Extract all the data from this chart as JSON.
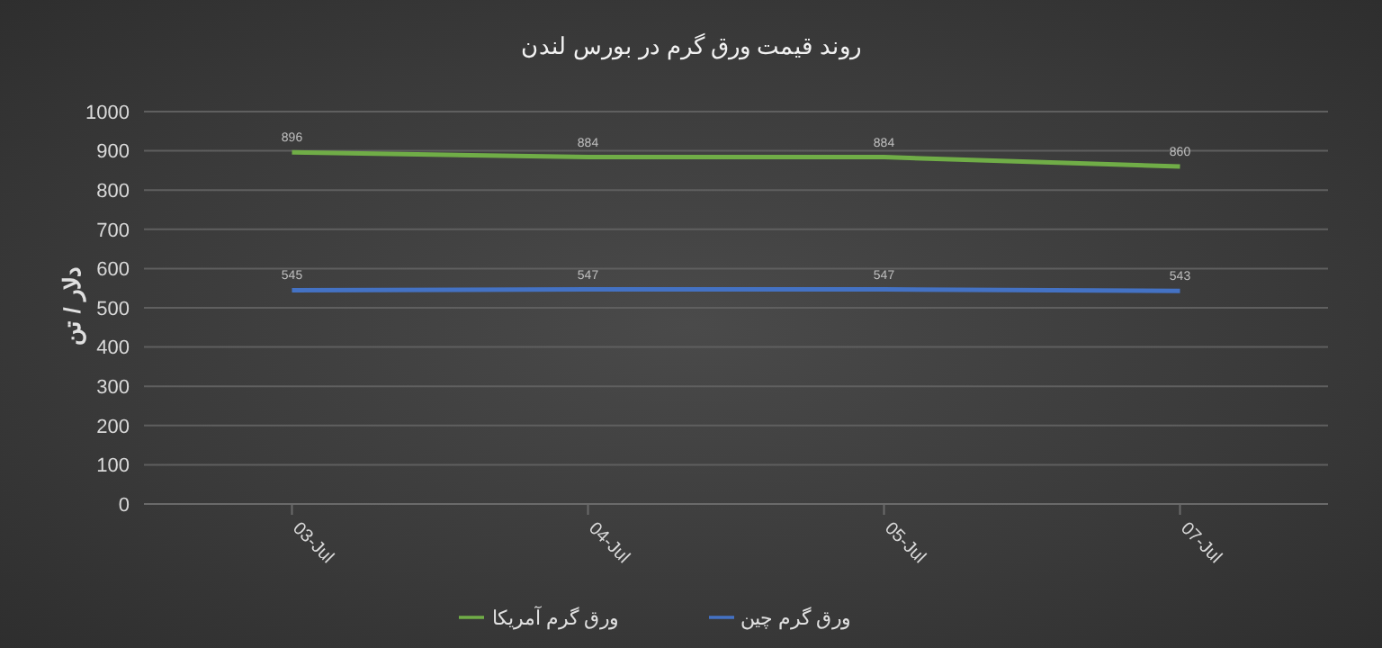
{
  "chart_data": {
    "type": "line",
    "title": "روند قیمت ورق گرم در بورس لندن",
    "ylabel": "دلار / تن",
    "categories": [
      "03-Jul",
      "04-Jul",
      "05-Jul",
      "07-Jul"
    ],
    "series": [
      {
        "name": "ورق گرم چین",
        "color": "#4472c4",
        "values": [
          545,
          547,
          547,
          543
        ]
      },
      {
        "name": "ورق گرم آمریکا",
        "color": "#70ad47",
        "values": [
          896,
          884,
          884,
          860
        ]
      }
    ],
    "ylim": [
      0,
      1000
    ],
    "yticks": [
      0,
      100,
      200,
      300,
      400,
      500,
      600,
      700,
      800,
      900,
      1000
    ],
    "grid": "y",
    "legend": "bottom",
    "data_labels": true,
    "marker": "none",
    "line_style": "solid"
  }
}
